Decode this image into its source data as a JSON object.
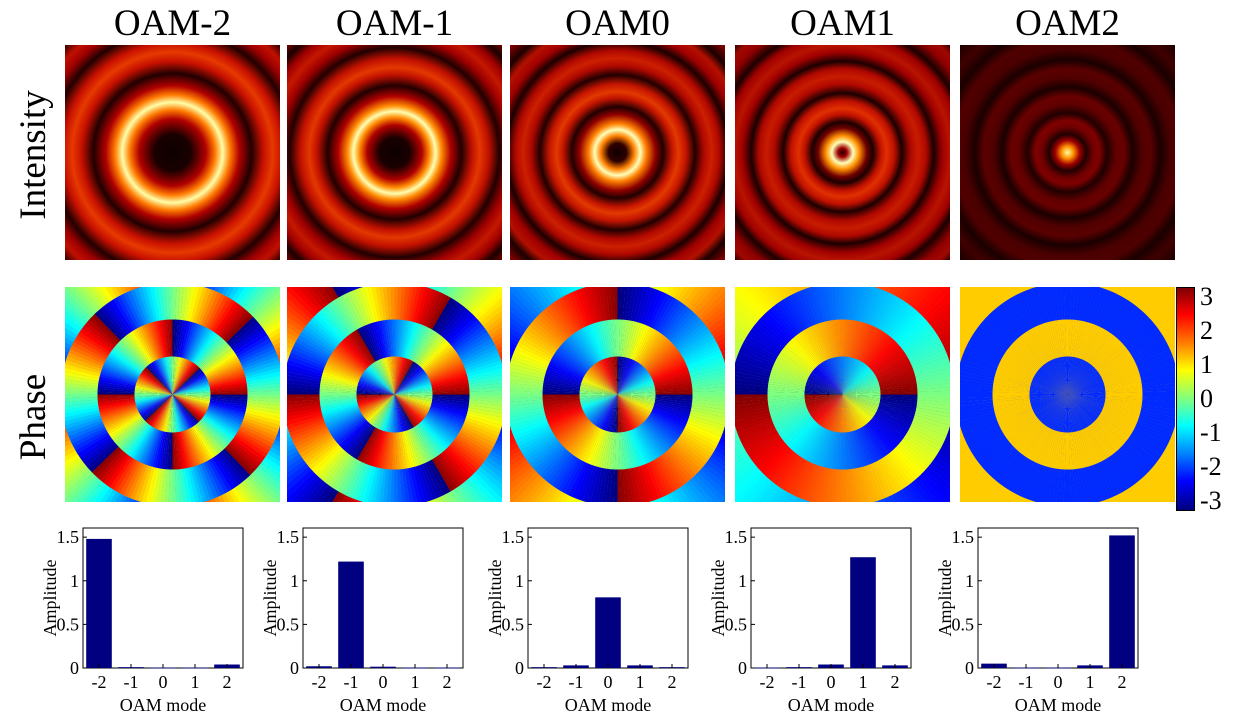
{
  "column_titles": [
    "OAM-2",
    "OAM-1",
    "OAM0",
    "OAM1",
    "OAM2"
  ],
  "row_labels": {
    "intensity": "Intensity",
    "phase": "Phase"
  },
  "colorbar": {
    "ticks": [
      "3",
      "2",
      "1",
      "0",
      "-1",
      "-2",
      "-3"
    ],
    "range": [
      -3,
      3
    ],
    "colormap": "jet"
  },
  "colors": {
    "bar": "#000080",
    "intensity_colormap": "hot"
  },
  "chart_data": [
    {
      "type": "bar",
      "title": "OAM-2",
      "categories": [
        "-2",
        "-1",
        "0",
        "1",
        "2"
      ],
      "values": [
        1.48,
        0.01,
        0.005,
        0.005,
        0.04
      ],
      "xlabel": "OAM mode",
      "ylabel": "Amplitude",
      "ylim": [
        0,
        1.5
      ],
      "yticks": [
        "0",
        "0.5",
        "1",
        "1.5"
      ]
    },
    {
      "type": "bar",
      "title": "OAM-1",
      "categories": [
        "-2",
        "-1",
        "0",
        "1",
        "2"
      ],
      "values": [
        0.02,
        1.22,
        0.015,
        0.005,
        0.005
      ],
      "xlabel": "OAM mode",
      "ylabel": "Amplitude",
      "ylim": [
        0,
        1.5
      ],
      "yticks": [
        "0",
        "0.5",
        "1",
        "1.5"
      ]
    },
    {
      "type": "bar",
      "title": "OAM0",
      "categories": [
        "-2",
        "-1",
        "0",
        "1",
        "2"
      ],
      "values": [
        0.01,
        0.03,
        0.81,
        0.03,
        0.01
      ],
      "xlabel": "OAM mode",
      "ylabel": "Amplitude",
      "ylim": [
        0,
        1.5
      ],
      "yticks": [
        "0",
        "0.5",
        "1",
        "1.5"
      ]
    },
    {
      "type": "bar",
      "title": "OAM1",
      "categories": [
        "-2",
        "-1",
        "0",
        "1",
        "2"
      ],
      "values": [
        0.005,
        0.01,
        0.04,
        1.27,
        0.03
      ],
      "xlabel": "OAM mode",
      "ylabel": "Amplitude",
      "ylim": [
        0,
        1.5
      ],
      "yticks": [
        "0",
        "0.5",
        "1",
        "1.5"
      ]
    },
    {
      "type": "bar",
      "title": "OAM2",
      "categories": [
        "-2",
        "-1",
        "0",
        "1",
        "2"
      ],
      "values": [
        0.05,
        0.005,
        0.005,
        0.03,
        1.52
      ],
      "xlabel": "OAM mode",
      "ylabel": "Amplitude",
      "ylim": [
        0,
        1.5
      ],
      "yticks": [
        "0",
        "0.5",
        "1",
        "1.5"
      ]
    }
  ]
}
